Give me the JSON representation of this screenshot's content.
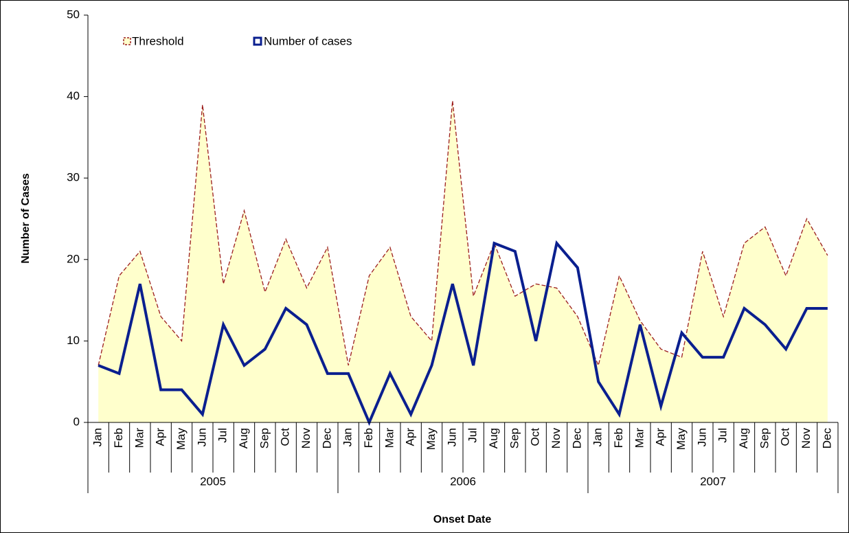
{
  "chart_data": {
    "type": "area-line",
    "x_title": "Onset Date",
    "y_title": "Number of Cases",
    "categories": [
      "Jan",
      "Feb",
      "Mar",
      "Apr",
      "May",
      "Jun",
      "Jul",
      "Aug",
      "Sep",
      "Oct",
      "Nov",
      "Dec",
      "Jan",
      "Feb",
      "Mar",
      "Apr",
      "May",
      "Jun",
      "Jul",
      "Aug",
      "Sep",
      "Oct",
      "Nov",
      "Dec",
      "Jan",
      "Feb",
      "Mar",
      "Apr",
      "May",
      "Jun",
      "Jul",
      "Aug",
      "Sep",
      "Oct",
      "Nov",
      "Dec"
    ],
    "groups": [
      "2005",
      "2006",
      "2007"
    ],
    "series": [
      {
        "name": "Threshold",
        "color": "#9b1c1c",
        "fill": "#ffffcc",
        "values": [
          7,
          18,
          21,
          13,
          10,
          39,
          17,
          26,
          16,
          22.5,
          16.5,
          21.5,
          7,
          18,
          21.5,
          13,
          10,
          39.5,
          15.5,
          22,
          15.5,
          17,
          16.5,
          13,
          7,
          18,
          12.5,
          9,
          8,
          21,
          13,
          22,
          24,
          18,
          25,
          20.5
        ]
      },
      {
        "name": "Number of cases",
        "color": "#0a1f8f",
        "values": [
          7,
          6,
          17,
          4,
          4,
          1,
          12,
          7,
          9,
          14,
          12,
          6,
          6,
          0,
          6,
          1,
          7,
          17,
          7,
          22,
          21,
          10,
          22,
          19,
          5,
          1,
          12,
          2,
          11,
          8,
          8,
          14,
          12,
          9,
          14,
          14
        ]
      }
    ],
    "ylim": [
      0,
      50
    ],
    "yticks": [
      0,
      10,
      20,
      30,
      40,
      50
    ],
    "grid": false
  }
}
